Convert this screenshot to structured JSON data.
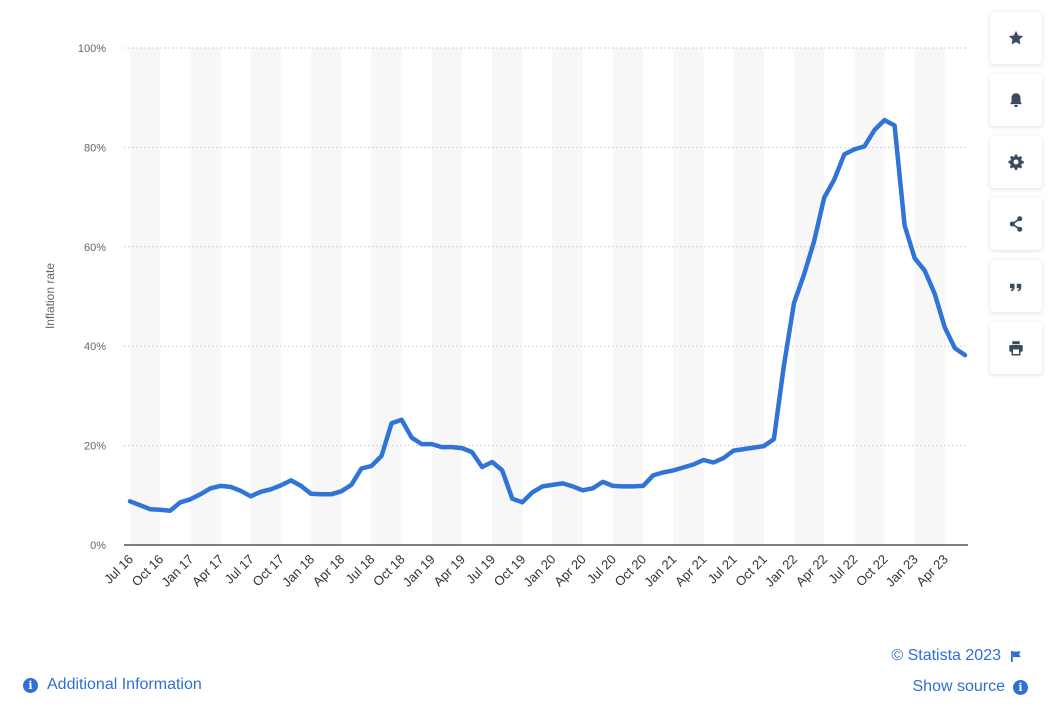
{
  "chart_data": {
    "type": "line",
    "ylabel": "Inflation rate",
    "xlabel": "",
    "ylim": [
      0,
      100
    ],
    "yticks": [
      0,
      20,
      40,
      60,
      80,
      100
    ],
    "ytick_labels": [
      "0%",
      "20%",
      "40%",
      "60%",
      "80%",
      "100%"
    ],
    "xtick_labels": [
      "Jul 16",
      "Oct 16",
      "Jan 17",
      "Apr 17",
      "Jul 17",
      "Oct 17",
      "Jan 18",
      "Apr 18",
      "Jul 18",
      "Oct 18",
      "Jan 19",
      "Apr 19",
      "Jul 19",
      "Oct 19",
      "Jan 20",
      "Apr 20",
      "Jul 20",
      "Oct 20",
      "Jan 21",
      "Apr 21",
      "Jul 21",
      "Oct 21",
      "Jan 22",
      "Apr 22",
      "Jul 22",
      "Oct 22",
      "Jan 23",
      "Apr 23"
    ],
    "grid": true,
    "line_color": "#2f74d6",
    "x_start": "Jul 16",
    "x_end": "Jun 23",
    "values": [
      8.8,
      8.0,
      7.2,
      7.1,
      6.9,
      8.6,
      9.2,
      10.2,
      11.4,
      11.9,
      11.7,
      10.9,
      9.8,
      10.7,
      11.2,
      12.0,
      13.0,
      11.9,
      10.3,
      10.2,
      10.2,
      10.8,
      12.1,
      15.4,
      15.9,
      17.9,
      24.5,
      25.2,
      21.6,
      20.3,
      20.3,
      19.7,
      19.7,
      19.5,
      18.7,
      15.7,
      16.7,
      15.0,
      9.3,
      8.6,
      10.6,
      11.8,
      12.1,
      12.4,
      11.8,
      11.0,
      11.4,
      12.7,
      11.9,
      11.8,
      11.8,
      11.9,
      14.0,
      14.6,
      15.0,
      15.6,
      16.2,
      17.1,
      16.6,
      17.5,
      19.0,
      19.3,
      19.6,
      19.9,
      21.3,
      36.1,
      48.7,
      54.4,
      61.1,
      69.9,
      73.5,
      78.6,
      79.6,
      80.2,
      83.5,
      85.5,
      84.4,
      64.3,
      57.7,
      55.2,
      50.5,
      43.7,
      39.6,
      38.2
    ]
  },
  "toolbar": {
    "buttons": [
      "star-icon",
      "bell-icon",
      "gear-icon",
      "share-icon",
      "quote-icon",
      "print-icon"
    ],
    "icon_color": "#3c4a5e"
  },
  "footer": {
    "copyright": "© Statista 2023",
    "additional_info": "Additional Information",
    "show_source": "Show source",
    "link_color": "#2f6fd6"
  }
}
